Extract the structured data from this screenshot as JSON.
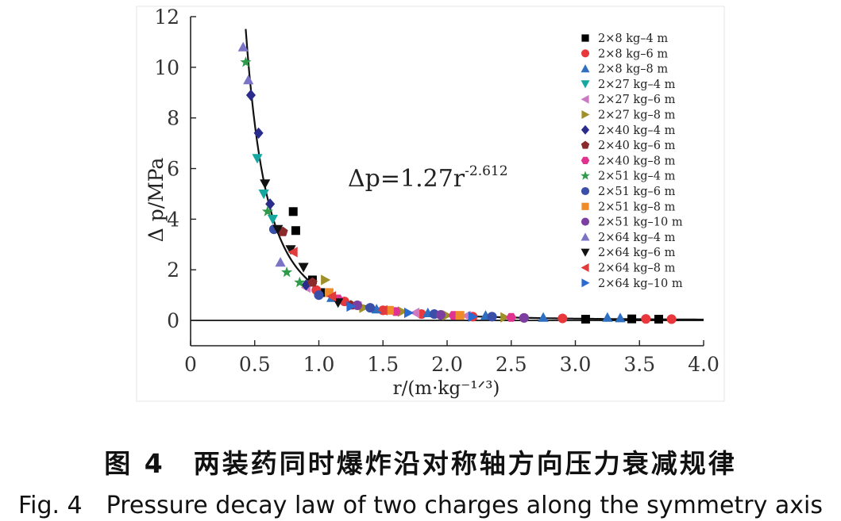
{
  "chart_data": {
    "type": "scatter",
    "xlabel": "r/(m·kg⁻¹ᐟ³)",
    "ylabel": "Δ p/MPa",
    "xlim": [
      0,
      4.0
    ],
    "ylim": [
      -1,
      12
    ],
    "x_ticks": [
      "0",
      "0.5",
      "1.0",
      "1.5",
      "2.0",
      "2.5",
      "3.0",
      "3.5",
      "4.0"
    ],
    "y_ticks": [
      "0",
      "2",
      "4",
      "6",
      "8",
      "10",
      "12"
    ],
    "equation": {
      "prefix": "Δp=1.27r",
      "exponent": "-2.612"
    },
    "fit": {
      "a": 1.27,
      "b": -2.612,
      "x_range": [
        0.43,
        4.0
      ]
    },
    "legend_position": "top-right",
    "series": [
      {
        "name": "2×8 kg–4 m",
        "color": "#000000",
        "marker": "square",
        "x": [
          0.8,
          0.82,
          0.95,
          1.05,
          3.08,
          3.44,
          3.65
        ],
        "y": [
          4.3,
          3.55,
          1.6,
          1.1,
          0.05,
          0.06,
          0.05
        ]
      },
      {
        "name": "2×8 kg–6 m",
        "color": "#e8383d",
        "marker": "circle",
        "x": [
          0.98,
          1.2,
          1.5,
          1.8,
          2.2,
          2.6,
          2.9,
          3.55,
          3.75
        ],
        "y": [
          1.2,
          0.75,
          0.4,
          0.25,
          0.15,
          0.1,
          0.08,
          0.06,
          0.05
        ]
      },
      {
        "name": "2×8 kg–8 m",
        "color": "#2e6fc2",
        "marker": "triangle-up",
        "x": [
          1.1,
          1.45,
          1.85,
          2.3,
          2.75,
          3.25,
          3.35
        ],
        "y": [
          0.9,
          0.45,
          0.3,
          0.2,
          0.12,
          0.12,
          0.1
        ]
      },
      {
        "name": "2×27 kg–4 m",
        "color": "#17a7a1",
        "marker": "triangle-down",
        "x": [
          0.52,
          0.57,
          0.64
        ],
        "y": [
          6.4,
          5.0,
          4.0
        ]
      },
      {
        "name": "2×27 kg–6 m",
        "color": "#cc7ac4",
        "marker": "triangle-left",
        "x": [
          0.9,
          1.3,
          1.75,
          2.15
        ],
        "y": [
          1.3,
          0.55,
          0.3,
          0.18
        ]
      },
      {
        "name": "2×27 kg–8 m",
        "color": "#a0902a",
        "marker": "triangle-right",
        "x": [
          1.05,
          1.35,
          1.65,
          2.0,
          2.45
        ],
        "y": [
          1.6,
          0.5,
          0.35,
          0.2,
          0.12
        ]
      },
      {
        "name": "2×40 kg–4 m",
        "color": "#2a2c8c",
        "marker": "diamond",
        "x": [
          0.47,
          0.53,
          0.62,
          0.9
        ],
        "y": [
          8.9,
          7.4,
          4.6,
          1.4
        ]
      },
      {
        "name": "2×40 kg–6 m",
        "color": "#8a2a2a",
        "marker": "pentagon",
        "x": [
          0.72,
          0.95,
          1.25
        ],
        "y": [
          3.5,
          1.5,
          0.6
        ]
      },
      {
        "name": "2×40 kg–8 m",
        "color": "#e0338f",
        "marker": "hexagon",
        "x": [
          1.15,
          1.6,
          2.05,
          2.5
        ],
        "y": [
          0.85,
          0.35,
          0.2,
          0.12
        ]
      },
      {
        "name": "2×51 kg–4 m",
        "color": "#2e9a4a",
        "marker": "star",
        "x": [
          0.43,
          0.6,
          0.75,
          0.85
        ],
        "y": [
          10.2,
          4.3,
          1.9,
          1.5
        ]
      },
      {
        "name": "2×51 kg–6 m",
        "color": "#3a4fa8",
        "marker": "circle",
        "x": [
          0.65,
          1.0,
          1.4,
          1.9,
          2.35
        ],
        "y": [
          3.6,
          1.0,
          0.5,
          0.25,
          0.15
        ]
      },
      {
        "name": "2×51 kg–8 m",
        "color": "#f08b2a",
        "marker": "square",
        "x": [
          1.08,
          1.55,
          2.1
        ],
        "y": [
          1.1,
          0.4,
          0.2
        ]
      },
      {
        "name": "2×51 kg–10 m",
        "color": "#7a3fa0",
        "marker": "circle",
        "x": [
          1.3,
          1.95,
          2.6
        ],
        "y": [
          0.6,
          0.22,
          0.1
        ]
      },
      {
        "name": "2×64 kg–4 m",
        "color": "#7b74c6",
        "marker": "triangle-up",
        "x": [
          0.41,
          0.45,
          0.7
        ],
        "y": [
          10.8,
          9.5,
          2.3
        ]
      },
      {
        "name": "2×64 kg–6 m",
        "color": "#111111",
        "marker": "triangle-down",
        "x": [
          0.58,
          0.68,
          0.78,
          0.88,
          1.15
        ],
        "y": [
          5.4,
          3.6,
          2.8,
          2.1,
          0.7
        ]
      },
      {
        "name": "2×64 kg–8 m",
        "color": "#e23b3b",
        "marker": "triangle-left",
        "x": [
          0.8,
          1.1,
          1.5
        ],
        "y": [
          2.7,
          0.95,
          0.4
        ]
      },
      {
        "name": "2×64 kg–10 m",
        "color": "#2b6ad0",
        "marker": "triangle-right",
        "x": [
          1.25,
          1.7,
          2.2
        ],
        "y": [
          0.55,
          0.3,
          0.15
        ]
      }
    ]
  },
  "caption": {
    "cn": "图 4　两装药同时爆炸沿对称轴方向压力衰减规律",
    "en": "Fig. 4　Pressure decay law of two charges along the symmetry axis"
  }
}
